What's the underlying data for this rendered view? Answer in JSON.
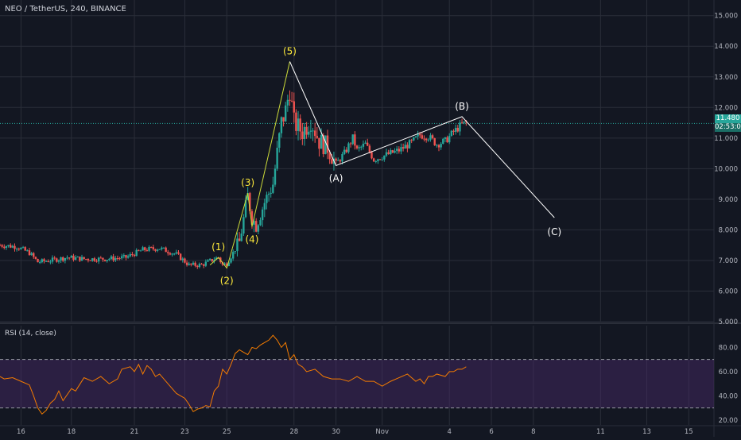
{
  "header": {
    "symbol_title": "NEO / TetherUS, 240, BINANCE"
  },
  "rsi_panel": {
    "title": "RSI (14, close)"
  },
  "price_tags": {
    "last_price": "11.480",
    "countdown": "02:53:04"
  },
  "colors": {
    "background": "#131722",
    "grid": "#2a2e39",
    "up": "#26a69a",
    "down": "#ef5350",
    "wave_impulse": "#ffeb3b",
    "wave_impulse_line": "#cddc39",
    "wave_corrective": "#ffffff",
    "rsi_line": "#f57c00",
    "rsi_band": "#4a2b6b",
    "last_price_line": "#26a69a"
  },
  "chart_data": [
    {
      "type": "candlestick",
      "title": "NEO / TetherUS, 240, BINANCE",
      "x_ticks": [
        "16",
        "18",
        "21",
        "23",
        "25",
        "28",
        "30",
        "Nov",
        "4",
        "6",
        "8",
        "11",
        "13",
        "15"
      ],
      "x_tick_index": [
        5,
        17,
        32,
        44,
        54,
        70,
        80,
        91,
        107,
        117,
        127,
        143,
        154,
        164
      ],
      "y_ticks": [
        "5.000",
        "6.000",
        "7.000",
        "8.000",
        "9.000",
        "10.000",
        "11.000",
        "12.000",
        "13.000",
        "14.000",
        "15.000"
      ],
      "ylim": [
        5,
        15.2
      ],
      "grid": true,
      "last_price": 11.48,
      "ohlc_anchors": [
        [
          0,
          7.5
        ],
        [
          4,
          7.45
        ],
        [
          7,
          7.25
        ],
        [
          9,
          6.95
        ],
        [
          12,
          7.0
        ],
        [
          16,
          7.1
        ],
        [
          20,
          7.05
        ],
        [
          25,
          7.05
        ],
        [
          30,
          7.1
        ],
        [
          34,
          7.35
        ],
        [
          38,
          7.4
        ],
        [
          42,
          7.2
        ],
        [
          45,
          6.85
        ],
        [
          48,
          6.85
        ],
        [
          51,
          7.05
        ],
        [
          52,
          7.1
        ],
        [
          53,
          6.85
        ],
        [
          54,
          6.9
        ],
        [
          57,
          7.6
        ],
        [
          59,
          9.1
        ],
        [
          60,
          8.4
        ],
        [
          61,
          8.15
        ],
        [
          63,
          8.9
        ],
        [
          65,
          9.5
        ],
        [
          67,
          11.5
        ],
        [
          68,
          11.9
        ],
        [
          69,
          12.6
        ],
        [
          70,
          11.5
        ],
        [
          72,
          11.2
        ],
        [
          74,
          11.6
        ],
        [
          76,
          10.9
        ],
        [
          78,
          10.7
        ],
        [
          80,
          10.15
        ],
        [
          82,
          10.5
        ],
        [
          84,
          11.0
        ],
        [
          85,
          10.6
        ],
        [
          87,
          10.8
        ],
        [
          89,
          10.3
        ],
        [
          92,
          10.45
        ],
        [
          95,
          10.6
        ],
        [
          98,
          10.85
        ],
        [
          100,
          11.1
        ],
        [
          102,
          11.05
        ],
        [
          104,
          10.8
        ],
        [
          106,
          10.9
        ],
        [
          108,
          11.2
        ],
        [
          110,
          11.45
        ],
        [
          111,
          11.5
        ]
      ],
      "waves": [
        {
          "label": "(1)",
          "x": 52,
          "y": 7.1,
          "style": "impulse"
        },
        {
          "label": "(2)",
          "x": 54,
          "y": 6.75,
          "style": "impulse"
        },
        {
          "label": "(3)",
          "x": 59,
          "y": 9.2,
          "style": "impulse"
        },
        {
          "label": "(4)",
          "x": 60,
          "y": 8.1,
          "style": "impulse"
        },
        {
          "label": "(5)",
          "x": 69,
          "y": 13.5,
          "style": "impulse"
        },
        {
          "label": "(A)",
          "x": 80,
          "y": 10.1,
          "style": "corrective"
        },
        {
          "label": "(B)",
          "x": 110,
          "y": 11.7,
          "style": "corrective"
        },
        {
          "label": "(C)",
          "x": 132,
          "y": 8.4,
          "style": "corrective"
        }
      ]
    },
    {
      "type": "line",
      "title": "RSI (14, close)",
      "y_ticks": [
        "20.00",
        "40.00",
        "60.00",
        "80.00"
      ],
      "ylim": [
        16,
        98
      ],
      "bands": [
        30,
        70
      ],
      "grid": true,
      "series": [
        {
          "x": [
            0,
            1,
            3,
            5,
            7,
            8,
            9,
            10,
            11,
            12,
            13,
            14,
            15,
            17,
            18,
            20,
            22,
            24,
            26,
            28,
            29,
            31,
            32,
            33,
            34,
            35,
            36,
            37,
            38,
            40,
            41,
            42,
            43,
            44,
            45,
            46,
            47,
            48,
            49,
            50,
            51,
            52,
            53,
            54,
            55,
            56,
            57,
            58,
            59,
            60,
            61,
            62,
            63,
            64,
            65,
            66,
            67,
            68,
            69,
            70,
            71,
            72,
            73,
            75,
            77,
            79,
            81,
            83,
            85,
            87,
            89,
            91,
            93,
            95,
            97,
            99,
            100,
            101,
            102,
            103,
            104,
            106,
            107,
            108,
            109,
            110,
            111
          ],
          "values": [
            56,
            54,
            55,
            52,
            49,
            40,
            30,
            25,
            28,
            34,
            37,
            44,
            36,
            46,
            44,
            55,
            52,
            56,
            50,
            54,
            62,
            64,
            60,
            66,
            58,
            65,
            62,
            56,
            58,
            50,
            46,
            42,
            40,
            38,
            33,
            27,
            29,
            30,
            32,
            31,
            44,
            48,
            62,
            58,
            66,
            75,
            78,
            76,
            74,
            80,
            79,
            82,
            84,
            86,
            90,
            86,
            80,
            84,
            70,
            74,
            66,
            64,
            60,
            62,
            56,
            54,
            54,
            52,
            56,
            52,
            52,
            48,
            52,
            55,
            58,
            52,
            54,
            50,
            56,
            56,
            58,
            56,
            60,
            60,
            62,
            62,
            64
          ]
        }
      ]
    }
  ]
}
